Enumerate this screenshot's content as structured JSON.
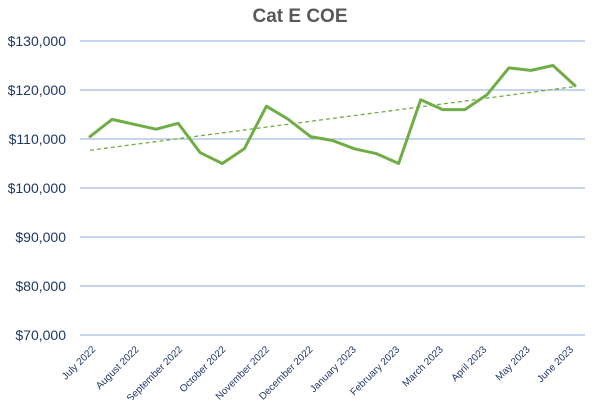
{
  "chart_data": {
    "type": "line",
    "title": "Cat E COE",
    "xlabel": "",
    "ylabel": "",
    "ylim": [
      70000,
      130000
    ],
    "yticks": [
      70000,
      80000,
      90000,
      100000,
      110000,
      120000,
      130000
    ],
    "ytick_labels": [
      "$70,000",
      "$80,000",
      "$90,000",
      "$100,000",
      "$110,000",
      "$120,000",
      "$130,000"
    ],
    "x_labels": [
      "July 2022",
      "August 2022",
      "September 2022",
      "October 2022",
      "November 2022",
      "December 2022",
      "January 2023",
      "February 2023",
      "March 2023",
      "April 2023",
      "May 2023",
      "June 2023"
    ],
    "grid": true,
    "legend": "none",
    "series": [
      {
        "values": [
          110500,
          114000,
          113000,
          112000,
          113200,
          107200,
          105000,
          108000,
          116700,
          114000,
          110500,
          109700,
          108000,
          107000,
          105000,
          118000,
          116000,
          116000,
          119000,
          124500,
          124000,
          125000,
          120900
        ],
        "color": "#70AD47",
        "style": "solid"
      }
    ],
    "trendline": {
      "type": "linear",
      "start": 107700,
      "end": 120700,
      "color": "#70AD47",
      "style": "dashed"
    },
    "colors": {
      "series": "#70AD47",
      "grid": "#8EA9DB",
      "axis_text": "#1F3864",
      "title": "#595959"
    }
  }
}
